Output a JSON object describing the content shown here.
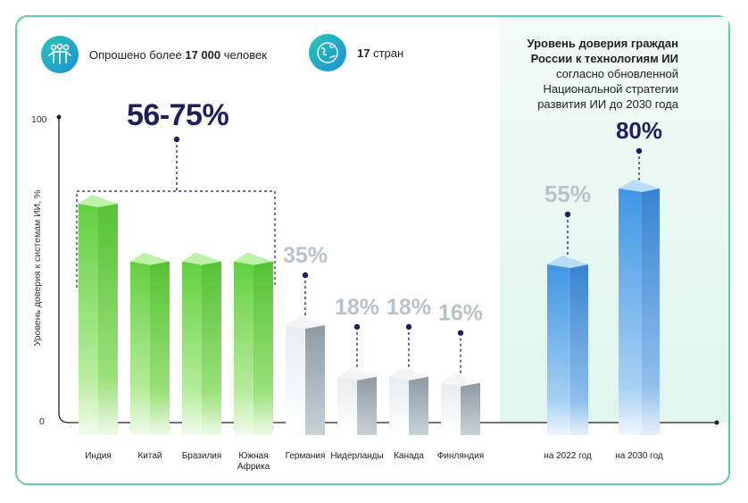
{
  "header": {
    "respondents_prefix": "Опрошено более ",
    "respondents_bold": "17 000",
    "respondents_suffix": " человек",
    "countries_bold": "17",
    "countries_suffix": " стран"
  },
  "panel": {
    "title_bold_1": "Уровень доверия граждан",
    "title_bold_2": "России к технологиям ИИ",
    "title_line_3": "согласно обновленной",
    "title_line_4": "Национальной стратегии",
    "title_line_5": "развития ИИ до 2030 года"
  },
  "colors": {
    "green": "#6fd34f",
    "grey": "#c5ced6",
    "blue": "#4a9ee6",
    "navy": "#1f1f5c",
    "label_grey": "#b9c2c9",
    "frame": "#5fcfa0"
  },
  "chart_data": {
    "type": "bar",
    "ylabel": "Уровень доверия к системам ИИ, %",
    "ylim": [
      0,
      100
    ],
    "yticks": [
      "0",
      "100"
    ],
    "range_label": "56-75%",
    "categories": [
      "Индия",
      "Китай",
      "Бразилия",
      "Южная Африка",
      "Германия",
      "Нидерланды",
      "Канада",
      "Финляндия",
      "на 2022 год",
      "на 2030 год"
    ],
    "category_lines": [
      [
        "Индия"
      ],
      [
        "Китай"
      ],
      [
        "Бразилия"
      ],
      [
        "Южная",
        "Африка"
      ],
      [
        "Германия"
      ],
      [
        "Нидерланды"
      ],
      [
        "Канада"
      ],
      [
        "Финляндия"
      ],
      [
        "на 2022 год"
      ],
      [
        "на 2030 год"
      ]
    ],
    "values": [
      75,
      56,
      56,
      56,
      35,
      18,
      18,
      16,
      55,
      80
    ],
    "value_labels": [
      "",
      "",
      "",
      "",
      "35%",
      "18%",
      "18%",
      "16%",
      "55%",
      "80%"
    ],
    "groups": [
      "green",
      "green",
      "green",
      "green",
      "grey",
      "grey",
      "grey",
      "grey",
      "blue",
      "blue"
    ]
  }
}
